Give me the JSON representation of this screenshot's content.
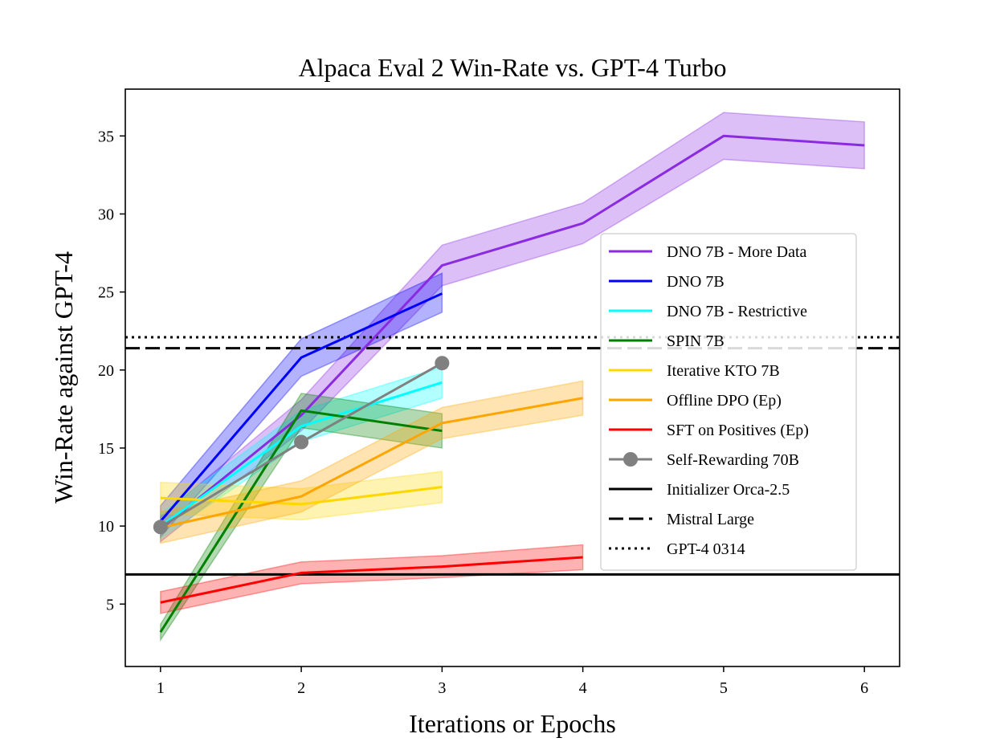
{
  "chart_data": {
    "type": "line",
    "title": "Alpaca Eval 2 Win-Rate vs. GPT-4 Turbo",
    "xlabel": "Iterations or Epochs",
    "ylabel": "Win-Rate against GPT-4",
    "xlim": [
      0.75,
      6.25
    ],
    "ylim": [
      1.0,
      38.0
    ],
    "xticks": [
      1,
      2,
      3,
      4,
      5,
      6
    ],
    "yticks": [
      5,
      10,
      15,
      20,
      25,
      30,
      35
    ],
    "grid": false,
    "legend_position": "center-right",
    "series": [
      {
        "name": "DNO 7B - More Data",
        "color": "#8a2be2",
        "x": [
          1,
          2,
          3,
          4,
          5,
          6
        ],
        "y": [
          9.8,
          17.1,
          26.7,
          29.4,
          35.0,
          34.4
        ],
        "band_low": [
          9.0,
          16.1,
          25.4,
          28.1,
          33.5,
          32.9
        ],
        "band_high": [
          10.6,
          18.1,
          28.0,
          30.7,
          36.5,
          35.9
        ]
      },
      {
        "name": "DNO 7B",
        "color": "#0000ff",
        "x": [
          1,
          2,
          3
        ],
        "y": [
          10.3,
          20.8,
          24.9
        ],
        "band_low": [
          9.3,
          19.6,
          23.7
        ],
        "band_high": [
          11.3,
          22.0,
          26.2
        ]
      },
      {
        "name": "DNO 7B - Restrictive",
        "color": "#00ffff",
        "x": [
          1,
          2,
          3
        ],
        "y": [
          10.0,
          16.4,
          19.2
        ],
        "band_low": [
          9.2,
          15.4,
          18.2
        ],
        "band_high": [
          10.8,
          17.4,
          20.2
        ]
      },
      {
        "name": "SPIN 7B",
        "color": "#008000",
        "x": [
          1,
          2,
          3
        ],
        "y": [
          3.2,
          17.4,
          16.1
        ],
        "band_low": [
          2.7,
          16.3,
          15.0
        ],
        "band_high": [
          3.7,
          18.5,
          17.2
        ]
      },
      {
        "name": "Iterative KTO 7B",
        "color": "#ffd700",
        "x": [
          1,
          2,
          3
        ],
        "y": [
          11.8,
          11.4,
          12.5
        ],
        "band_low": [
          10.8,
          10.4,
          11.5
        ],
        "band_high": [
          12.8,
          12.4,
          13.5
        ]
      },
      {
        "name": "Offline DPO (Ep)",
        "color": "#ffa500",
        "x": [
          1,
          2,
          3,
          4
        ],
        "y": [
          9.9,
          11.9,
          16.6,
          18.2
        ],
        "band_low": [
          8.9,
          10.9,
          15.6,
          17.1
        ],
        "band_high": [
          10.9,
          12.9,
          17.6,
          19.3
        ]
      },
      {
        "name": "SFT on Positives (Ep)",
        "color": "#ff0000",
        "x": [
          1,
          2,
          3,
          4
        ],
        "y": [
          5.1,
          7.0,
          7.4,
          8.0
        ],
        "band_low": [
          4.4,
          6.3,
          6.7,
          7.2
        ],
        "band_high": [
          5.8,
          7.7,
          8.1,
          8.8
        ]
      },
      {
        "name": "Self-Rewarding 70B",
        "color": "#808080",
        "marker": "circle",
        "x": [
          1,
          2,
          3
        ],
        "y": [
          9.94,
          15.38,
          20.44
        ]
      }
    ],
    "reference_lines": [
      {
        "name": "Initializer Orca-2.5",
        "y": 6.9,
        "style": "solid",
        "color": "#000000"
      },
      {
        "name": "Mistral Large",
        "y": 21.4,
        "style": "dashed",
        "color": "#000000"
      },
      {
        "name": "GPT-4 0314",
        "y": 22.1,
        "style": "dotted",
        "color": "#000000"
      }
    ]
  }
}
